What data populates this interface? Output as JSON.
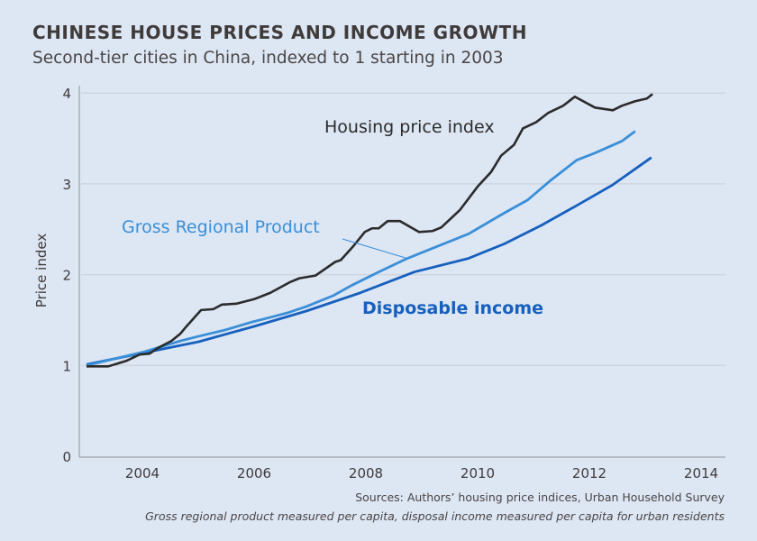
{
  "chart_data": {
    "type": "line",
    "title": "CHINESE HOUSE PRICES AND INCOME GROWTH",
    "subtitle": "Second-tier cities in China, indexed to 1 starting in 2003",
    "xlabel": "",
    "ylabel": "Price index",
    "xlim": [
      2003,
      2014.6
    ],
    "ylim": [
      0,
      4
    ],
    "xticks": [
      2004,
      2006,
      2008,
      2010,
      2012,
      2014
    ],
    "yticks": [
      0,
      1,
      2,
      3,
      4
    ],
    "grid": "horizontal",
    "series": [
      {
        "name": "Housing price index",
        "color": "#2b2b2b",
        "points": [
          [
            2003.0,
            0.99
          ],
          [
            2003.39,
            0.99
          ],
          [
            2003.71,
            1.05
          ],
          [
            2003.95,
            1.12
          ],
          [
            2004.13,
            1.13
          ],
          [
            2004.27,
            1.19
          ],
          [
            2004.52,
            1.27
          ],
          [
            2004.68,
            1.35
          ],
          [
            2004.76,
            1.41
          ],
          [
            2005.05,
            1.61
          ],
          [
            2005.27,
            1.62
          ],
          [
            2005.42,
            1.67
          ],
          [
            2005.68,
            1.68
          ],
          [
            2006.0,
            1.73
          ],
          [
            2006.29,
            1.8
          ],
          [
            2006.65,
            1.92
          ],
          [
            2006.81,
            1.96
          ],
          [
            2007.1,
            1.99
          ],
          [
            2007.45,
            2.14
          ],
          [
            2007.55,
            2.16
          ],
          [
            2007.77,
            2.31
          ],
          [
            2007.98,
            2.47
          ],
          [
            2008.11,
            2.51
          ],
          [
            2008.23,
            2.51
          ],
          [
            2008.39,
            2.59
          ],
          [
            2008.61,
            2.59
          ],
          [
            2008.95,
            2.47
          ],
          [
            2009.19,
            2.48
          ],
          [
            2009.35,
            2.52
          ],
          [
            2009.68,
            2.71
          ],
          [
            2010.0,
            2.97
          ],
          [
            2010.24,
            3.13
          ],
          [
            2010.42,
            3.31
          ],
          [
            2010.65,
            3.43
          ],
          [
            2010.81,
            3.61
          ],
          [
            2011.05,
            3.68
          ],
          [
            2011.26,
            3.78
          ],
          [
            2011.53,
            3.86
          ],
          [
            2011.74,
            3.96
          ],
          [
            2012.1,
            3.84
          ],
          [
            2012.42,
            3.81
          ],
          [
            2012.58,
            3.86
          ],
          [
            2012.82,
            3.91
          ],
          [
            2013.03,
            3.94
          ],
          [
            2013.13,
            3.99
          ]
        ]
      },
      {
        "name": "Gross Regional Product",
        "color": "#3a8fd8",
        "points": [
          [
            2003.0,
            1.0
          ],
          [
            2004.03,
            1.15
          ],
          [
            2004.68,
            1.27
          ],
          [
            2005.0,
            1.32
          ],
          [
            2005.48,
            1.39
          ],
          [
            2005.97,
            1.48
          ],
          [
            2006.29,
            1.53
          ],
          [
            2006.6,
            1.58
          ],
          [
            2006.94,
            1.65
          ],
          [
            2007.42,
            1.77
          ],
          [
            2007.74,
            1.88
          ],
          [
            2008.23,
            2.03
          ],
          [
            2008.71,
            2.17
          ],
          [
            2009.19,
            2.29
          ],
          [
            2009.84,
            2.45
          ],
          [
            2010.48,
            2.68
          ],
          [
            2010.89,
            2.82
          ],
          [
            2011.29,
            3.03
          ],
          [
            2011.77,
            3.26
          ],
          [
            2012.1,
            3.34
          ],
          [
            2012.58,
            3.47
          ],
          [
            2012.82,
            3.58
          ]
        ]
      },
      {
        "name": "Disposable income",
        "color": "#1660be",
        "points": [
          [
            2003.0,
            1.01
          ],
          [
            2004.03,
            1.14
          ],
          [
            2005.0,
            1.26
          ],
          [
            2006.0,
            1.43
          ],
          [
            2006.94,
            1.6
          ],
          [
            2007.9,
            1.8
          ],
          [
            2008.87,
            2.03
          ],
          [
            2009.84,
            2.18
          ],
          [
            2010.48,
            2.34
          ],
          [
            2011.13,
            2.54
          ],
          [
            2011.77,
            2.76
          ],
          [
            2012.42,
            2.99
          ],
          [
            2013.11,
            3.29
          ]
        ]
      }
    ],
    "notes": [
      "Sources: Authors’ housing price indices, Urban Household Survey",
      "Gross regional product measured per capita, disposal income measured per capita for urban residents"
    ]
  }
}
